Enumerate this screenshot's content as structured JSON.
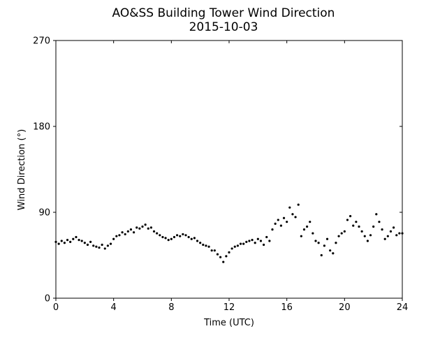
{
  "chart_data": {
    "type": "scatter",
    "title": "AO&SS Building Tower Wind Direction",
    "subtitle": "2015-10-03",
    "x_label": "Time (UTC)",
    "y_label": "Wind Direction (°)",
    "xlim": [
      0,
      24
    ],
    "ylim": [
      0,
      270
    ],
    "xticks": [
      0,
      4,
      8,
      12,
      16,
      20,
      24
    ],
    "yticks": [
      0,
      90,
      180,
      270
    ],
    "color": "#000000",
    "x": [
      0,
      0.2,
      0.4,
      0.6,
      0.8,
      1,
      1.2,
      1.4,
      1.6,
      1.8,
      2,
      2.2,
      2.4,
      2.6,
      2.8,
      3,
      3.2,
      3.4,
      3.6,
      3.8,
      4,
      4.2,
      4.4,
      4.6,
      4.8,
      5,
      5.2,
      5.4,
      5.6,
      5.8,
      6,
      6.2,
      6.4,
      6.6,
      6.8,
      7,
      7.2,
      7.4,
      7.6,
      7.8,
      8,
      8.2,
      8.4,
      8.6,
      8.8,
      9,
      9.2,
      9.4,
      9.6,
      9.8,
      10,
      10.2,
      10.4,
      10.6,
      10.8,
      11,
      11.2,
      11.4,
      11.6,
      11.8,
      12,
      12.2,
      12.4,
      12.6,
      12.8,
      13,
      13.2,
      13.4,
      13.6,
      13.8,
      14,
      14.2,
      14.4,
      14.6,
      14.8,
      15,
      15.2,
      15.4,
      15.6,
      15.8,
      16,
      16.2,
      16.4,
      16.6,
      16.8,
      17,
      17.2,
      17.4,
      17.6,
      17.8,
      18,
      18.2,
      18.4,
      18.6,
      18.8,
      19,
      19.2,
      19.4,
      19.6,
      19.8,
      20,
      20.2,
      20.4,
      20.6,
      20.8,
      21,
      21.2,
      21.4,
      21.6,
      21.8,
      22,
      22.2,
      22.4,
      22.6,
      22.8,
      23,
      23.2,
      23.4,
      23.6,
      23.8,
      24
    ],
    "values": [
      59,
      57,
      60,
      58,
      61,
      59,
      62,
      64,
      61,
      60,
      58,
      56,
      59,
      55,
      54,
      53,
      56,
      52,
      55,
      57,
      62,
      65,
      66,
      69,
      67,
      70,
      72,
      69,
      74,
      73,
      75,
      77,
      73,
      74,
      70,
      68,
      66,
      64,
      63,
      61,
      62,
      64,
      66,
      65,
      67,
      66,
      64,
      62,
      63,
      60,
      58,
      56,
      55,
      54,
      50,
      50,
      46,
      43,
      38,
      44,
      48,
      52,
      54,
      55,
      57,
      57,
      59,
      60,
      61,
      58,
      62,
      60,
      56,
      64,
      60,
      72,
      78,
      82,
      76,
      84,
      80,
      95,
      88,
      85,
      98,
      65,
      72,
      75,
      80,
      68,
      60,
      58,
      45,
      55,
      62,
      50,
      47,
      58,
      65,
      68,
      70,
      82,
      86,
      76,
      80,
      75,
      70,
      65,
      60,
      66,
      75,
      88,
      80,
      72,
      62,
      65,
      70,
      74,
      66,
      68,
      68
    ]
  }
}
